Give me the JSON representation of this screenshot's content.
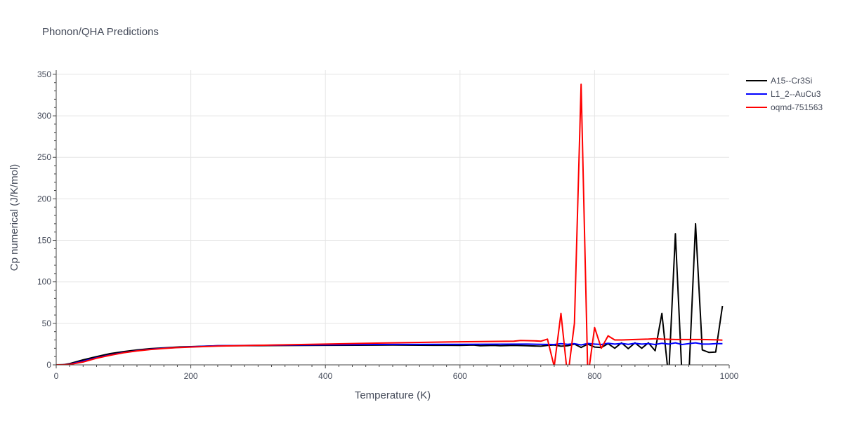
{
  "chart_data": {
    "type": "line",
    "title": "Phonon/QHA Predictions",
    "xlabel": "Temperature (K)",
    "ylabel": "Cp numerical (J/K/mol)",
    "xlim": [
      0,
      1000
    ],
    "ylim": [
      0,
      355
    ],
    "xticks": [
      0,
      200,
      400,
      600,
      800,
      1000
    ],
    "yticks": [
      0,
      50,
      100,
      150,
      200,
      250,
      300,
      350
    ],
    "grid": true,
    "legend_position": "top-right",
    "series": [
      {
        "name": "A15--Cr3Si",
        "color": "#000000",
        "x": [
          0,
          10,
          20,
          40,
          60,
          80,
          100,
          120,
          140,
          160,
          180,
          200,
          220,
          240,
          300,
          400,
          500,
          560,
          600,
          620,
          630,
          650,
          660,
          680,
          700,
          720,
          730,
          740,
          750,
          760,
          770,
          780,
          790,
          800,
          810,
          820,
          830,
          840,
          850,
          860,
          870,
          880,
          890,
          900,
          910,
          920,
          930,
          940,
          950,
          960,
          970,
          980,
          990
        ],
        "y": [
          0,
          0.2,
          1.5,
          6,
          10,
          13.5,
          16,
          18,
          19.5,
          20.5,
          21.5,
          22,
          22.5,
          23,
          23.2,
          23.6,
          23.8,
          23.6,
          23.5,
          23.8,
          23,
          23.4,
          23,
          23.5,
          23,
          22.5,
          23.5,
          24,
          22.5,
          23,
          25,
          21,
          25,
          21.5,
          21,
          25.5,
          20,
          26.5,
          19.5,
          26.5,
          20,
          26.5,
          17,
          62,
          -15,
          158,
          -15,
          -15,
          170,
          18,
          15,
          15.5,
          71
        ]
      },
      {
        "name": "L1_2--AuCu3",
        "color": "#0000ff",
        "x": [
          0,
          10,
          20,
          40,
          60,
          80,
          100,
          120,
          140,
          160,
          180,
          200,
          220,
          240,
          300,
          400,
          500,
          600,
          700,
          740,
          750,
          760,
          770,
          780,
          790,
          800,
          810,
          820,
          830,
          840,
          850,
          860,
          870,
          880,
          890,
          900,
          910,
          920,
          930,
          940,
          950,
          960,
          970,
          980,
          990
        ],
        "y": [
          0,
          0.1,
          0.8,
          4.5,
          8.5,
          12,
          14.8,
          17,
          18.8,
          20,
          21,
          21.8,
          22.4,
          23,
          23.6,
          24.2,
          24.6,
          24.8,
          25,
          24.5,
          25.5,
          24.8,
          25.5,
          24,
          25.8,
          25,
          24.5,
          26,
          25,
          25.8,
          24.8,
          26,
          25,
          25.5,
          24.5,
          26,
          25,
          26.5,
          24.5,
          25.5,
          26.5,
          25,
          25,
          25.5,
          25.5
        ]
      },
      {
        "name": "oqmd-751563",
        "color": "#ff0000",
        "x": [
          0,
          10,
          20,
          40,
          60,
          80,
          100,
          120,
          140,
          160,
          180,
          200,
          240,
          300,
          400,
          500,
          600,
          680,
          690,
          710,
          720,
          730,
          740,
          750,
          760,
          770,
          780,
          790,
          800,
          810,
          820,
          830,
          840,
          860,
          880,
          890,
          900,
          920,
          940,
          960,
          980,
          990
        ],
        "y": [
          0,
          0.1,
          0.5,
          3.5,
          8,
          11.5,
          14.5,
          16.8,
          18.5,
          19.8,
          20.8,
          21.5,
          22.6,
          23.6,
          25,
          26.5,
          27.8,
          28.5,
          29.3,
          29,
          28.5,
          31,
          -2,
          62,
          -15,
          50,
          338,
          -15,
          45,
          20,
          35,
          30,
          30,
          30.5,
          31,
          31.5,
          31,
          30.5,
          30.5,
          30.5,
          30.2,
          29.8
        ]
      }
    ]
  }
}
